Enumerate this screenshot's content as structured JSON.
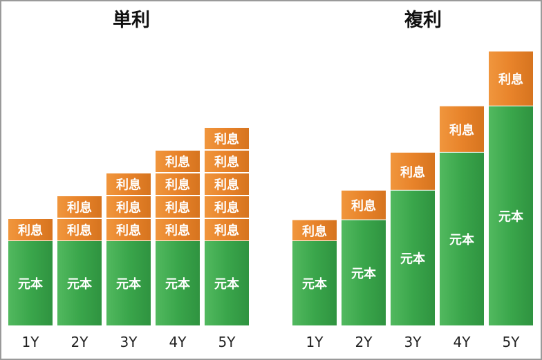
{
  "chart_data": [
    {
      "type": "bar",
      "title": "単利",
      "categories": [
        "1Y",
        "2Y",
        "3Y",
        "4Y",
        "5Y"
      ],
      "segment_labels": {
        "principal": "元本",
        "interest": "利息"
      },
      "principal": [
        1,
        1,
        1,
        1,
        1
      ],
      "interest_blocks": [
        1,
        2,
        3,
        4,
        5
      ],
      "colors": {
        "principal": "#3aa64b",
        "interest": "#e8832a"
      }
    },
    {
      "type": "bar",
      "title": "複利",
      "categories": [
        "1Y",
        "2Y",
        "3Y",
        "4Y",
        "5Y"
      ],
      "segment_labels": {
        "principal": "元本",
        "interest": "利息"
      },
      "principal": [
        1,
        1.25,
        1.6,
        2.05,
        2.6
      ],
      "interest": [
        0.25,
        0.35,
        0.45,
        0.55,
        0.65
      ],
      "colors": {
        "principal": "#3aa64b",
        "interest": "#e8832a"
      }
    }
  ]
}
